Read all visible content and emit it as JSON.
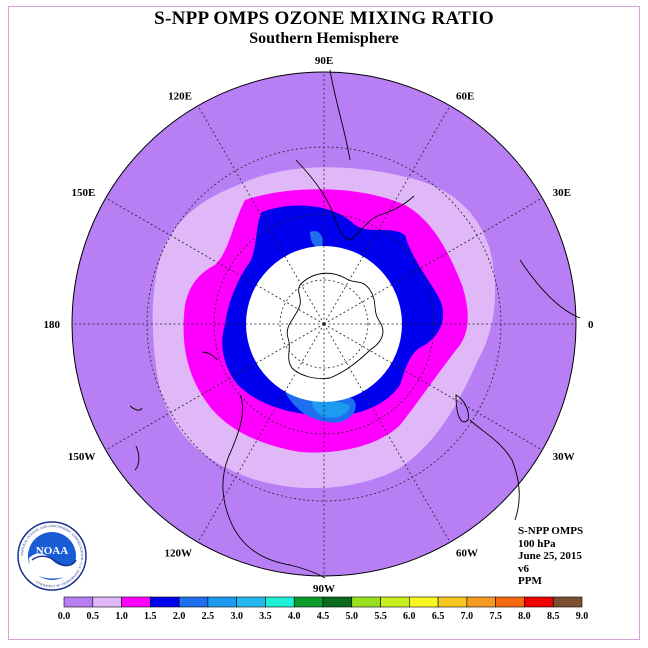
{
  "title": "S-NPP OMPS OZONE MIXING RATIO",
  "subtitle": "Southern Hemisphere",
  "longitude_labels": [
    {
      "text": "90W",
      "lon": -90
    },
    {
      "text": "60W",
      "lon": -60
    },
    {
      "text": "30W",
      "lon": -30
    },
    {
      "text": "0",
      "lon": 0
    },
    {
      "text": "30E",
      "lon": 30
    },
    {
      "text": "60E",
      "lon": 60
    },
    {
      "text": "90E",
      "lon": 90
    },
    {
      "text": "120E",
      "lon": 120
    },
    {
      "text": "150E",
      "lon": 150
    },
    {
      "text": "180",
      "lon": 180
    },
    {
      "text": "150W",
      "lon": -150
    },
    {
      "text": "120W",
      "lon": -120
    }
  ],
  "info": {
    "instrument": "S-NPP OMPS",
    "level": "100 hPa",
    "date": "June 25, 2015",
    "version": "v6",
    "units": "PPM"
  },
  "logo": {
    "text": "NOAA",
    "ring_text": "NATIONAL OCEANIC AND ATMOSPHERIC ADMINISTRATION • U.S. DEPARTMENT OF COMMERCE"
  },
  "colorbar": {
    "labels": [
      "0.0",
      "0.5",
      "1.0",
      "1.5",
      "2.0",
      "2.5",
      "3.0",
      "3.5",
      "4.0",
      "4.5",
      "5.0",
      "5.5",
      "6.0",
      "6.5",
      "7.0",
      "7.5",
      "8.0",
      "8.5",
      "9.0"
    ],
    "colors": [
      "#b87ff5",
      "#e0b8f8",
      "#ff00ff",
      "#0000ee",
      "#1e6ff0",
      "#1c9bf0",
      "#23b8f0",
      "#20f0d8",
      "#0c9c2c",
      "#0a6c1c",
      "#99e020",
      "#c8f020",
      "#f8f820",
      "#f8c820",
      "#f89a20",
      "#f86a10",
      "#f00000",
      "#7a5030"
    ]
  },
  "chart_data": {
    "type": "heatmap",
    "title": "S-NPP OMPS OZONE MIXING RATIO",
    "subtitle": "Southern Hemisphere",
    "projection": "south polar stereographic",
    "level": "100 hPa",
    "units": "PPM",
    "levels": [
      0.0,
      0.5,
      1.0,
      1.5,
      2.0,
      2.5,
      3.0,
      3.5,
      4.0,
      4.5,
      5.0,
      5.5,
      6.0,
      6.5,
      7.0,
      7.5,
      8.0,
      8.5,
      9.0
    ],
    "range_observed": [
      0.0,
      2.5
    ],
    "latitude_circles": [
      -40,
      -60,
      -80
    ],
    "meridian_spacing_deg": 30
  }
}
